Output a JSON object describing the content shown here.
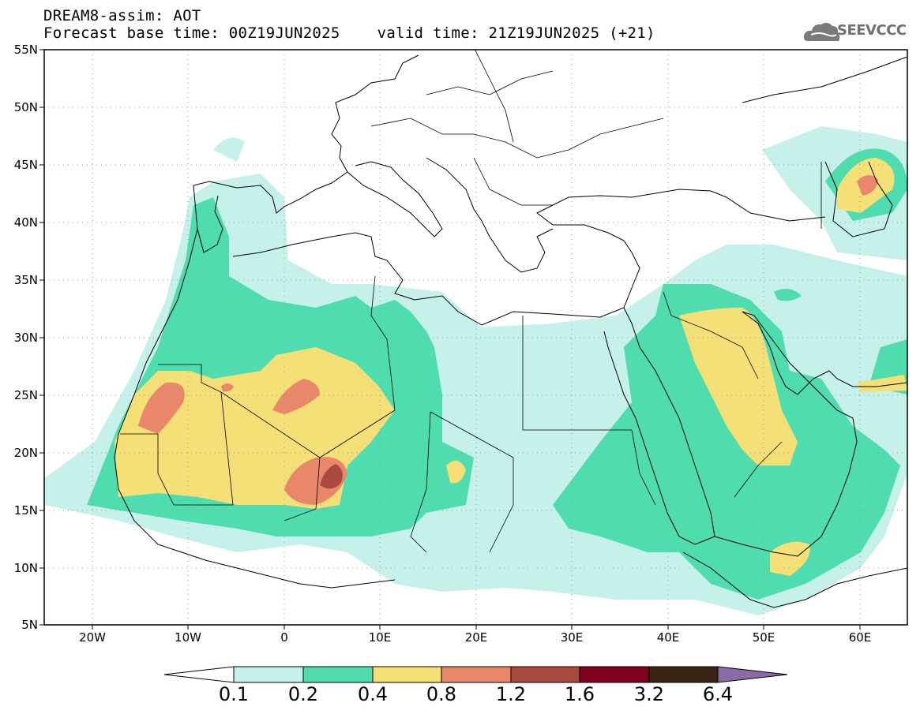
{
  "header": {
    "title_line1": "DREAM8-assim: AOT",
    "title_line2": "Forecast base time: 00Z19JUN2025    valid time: 21Z19JUN2025 (+21)"
  },
  "logo": {
    "text": "SEEVCCC",
    "icon": "cloud-icon"
  },
  "map": {
    "variable": "AOT",
    "lon_range": [
      -25,
      65
    ],
    "lat_range": [
      5,
      55
    ],
    "grid": "dotted",
    "lat_labels": [
      "55N",
      "50N",
      "45N",
      "40N",
      "35N",
      "30N",
      "25N",
      "20N",
      "15N",
      "10N",
      "5N"
    ],
    "lat_values": [
      55,
      50,
      45,
      40,
      35,
      30,
      25,
      20,
      15,
      10,
      5
    ],
    "lon_labels": [
      "20W",
      "10W",
      "0",
      "10E",
      "20E",
      "30E",
      "40E",
      "50E",
      "60E"
    ],
    "lon_values": [
      -20,
      -10,
      0,
      10,
      20,
      30,
      40,
      50,
      60
    ]
  },
  "colorbar": {
    "levels": [
      "0.1",
      "0.2",
      "0.4",
      "0.8",
      "1.2",
      "1.6",
      "3.2",
      "6.4"
    ],
    "colors": [
      "#c6f1ea",
      "#4fdcae",
      "#f4e076",
      "#e8876a",
      "#a84b3e",
      "#800020",
      "#3b2315",
      "#8a6ba8"
    ]
  }
}
